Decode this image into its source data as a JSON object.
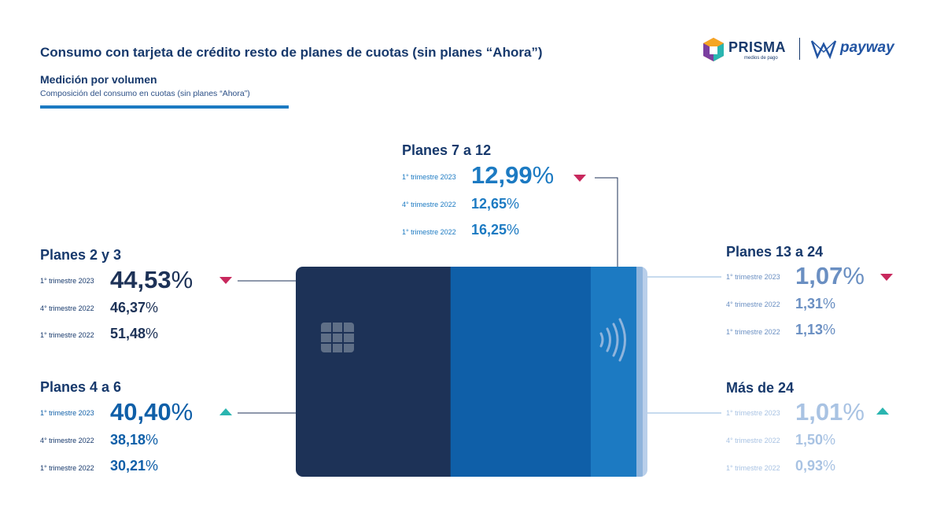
{
  "header": {
    "title": "Consumo con tarjeta de crédito resto de planes de cuotas (sin planes “Ahora”)",
    "subtitle": "Medición por volumen",
    "caption": "Composición del consumo en cuotas (sin planes “Ahora”)"
  },
  "logos": {
    "prisma": "PRISMA",
    "prisma_sub": "medios de pago",
    "payway": "payway"
  },
  "colors": {
    "navy": "#1d3257",
    "blue": "#0f5fa8",
    "light_blue": "#1c7ac2",
    "pale_blue": "#8fb4dc",
    "down": "#c8285d",
    "up": "#2ab5b0"
  },
  "chart_data": {
    "type": "table",
    "title": "Composición del consumo en cuotas (sin planes “Ahora”)",
    "periods": [
      "1° trimestre 2023",
      "4° trimestre 2022",
      "1° trimestre 2022"
    ],
    "unit": "%",
    "series": [
      {
        "name": "Planes 2 y 3",
        "values": [
          "44,53",
          "46,37",
          "51,48"
        ],
        "trend": "down"
      },
      {
        "name": "Planes 4 a 6",
        "values": [
          "40,40",
          "38,18",
          "30,21"
        ],
        "trend": "up"
      },
      {
        "name": "Planes 7 a 12",
        "values": [
          "12,99",
          "12,65",
          "16,25"
        ],
        "trend": "down"
      },
      {
        "name": "Planes 13 a 24",
        "values": [
          "1,07",
          "1,31",
          "1,13"
        ],
        "trend": "down"
      },
      {
        "name": "Más de 24",
        "values": [
          "1,01",
          "1,50",
          "0,93"
        ],
        "trend": "up"
      }
    ],
    "card_segments": [
      44.53,
      40.4,
      12.99,
      1.07,
      1.01
    ]
  }
}
